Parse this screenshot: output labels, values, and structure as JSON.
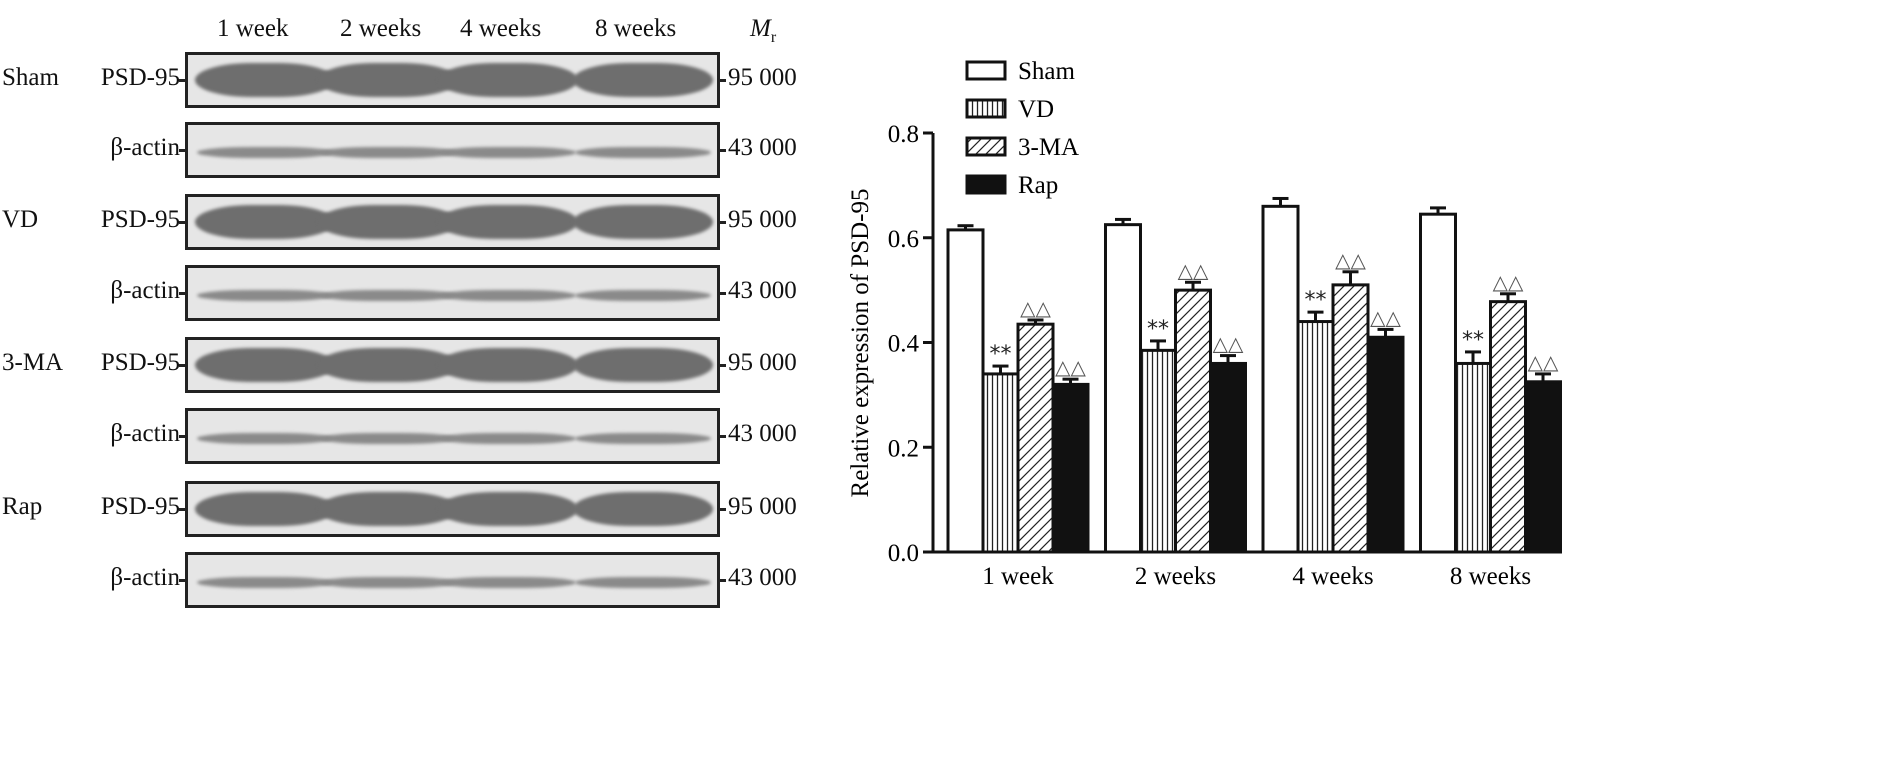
{
  "blot": {
    "lanes": [
      "1 week",
      "2 weeks",
      "4 weeks",
      "8 weeks"
    ],
    "mr_label": "M",
    "mr_sub": "r",
    "rows": [
      {
        "group": "Sham",
        "protein": "PSD-95",
        "mr": "95 000"
      },
      {
        "group": "",
        "protein": "β-actin",
        "mr": "43 000"
      },
      {
        "group": "VD",
        "protein": "PSD-95",
        "mr": "95 000"
      },
      {
        "group": "",
        "protein": "β-actin",
        "mr": "43 000"
      },
      {
        "group": "3-MA",
        "protein": "PSD-95",
        "mr": "95 000"
      },
      {
        "group": "",
        "protein": "β-actin",
        "mr": "43 000"
      },
      {
        "group": "Rap",
        "protein": "PSD-95",
        "mr": "95 000"
      },
      {
        "group": "",
        "protein": "β-actin",
        "mr": "43 000"
      }
    ]
  },
  "chart_data": {
    "type": "bar",
    "title": "",
    "xlabel": "",
    "ylabel": "Relative expression of PSD-95",
    "ylim": [
      0,
      0.8
    ],
    "yticks": [
      "0.0",
      "0.2",
      "0.4",
      "0.6",
      "0.8"
    ],
    "categories": [
      "1 week",
      "2 weeks",
      "4 weeks",
      "8 weeks"
    ],
    "legend_position": "top-left",
    "series": [
      {
        "name": "Sham",
        "values": [
          0.615,
          0.625,
          0.66,
          0.645
        ],
        "errors": [
          0.008,
          0.01,
          0.015,
          0.012
        ],
        "annotations": [
          "",
          "",
          "",
          ""
        ]
      },
      {
        "name": "VD",
        "values": [
          0.34,
          0.385,
          0.44,
          0.36
        ],
        "errors": [
          0.015,
          0.018,
          0.018,
          0.022
        ],
        "annotations": [
          "**",
          "**",
          "**",
          "**"
        ]
      },
      {
        "name": "3-MA",
        "values": [
          0.435,
          0.5,
          0.51,
          0.478
        ],
        "errors": [
          0.008,
          0.015,
          0.025,
          0.015
        ],
        "annotations": [
          "△△",
          "△△",
          "△△",
          "△△"
        ]
      },
      {
        "name": "Rap",
        "values": [
          0.32,
          0.36,
          0.41,
          0.325
        ],
        "errors": [
          0.01,
          0.015,
          0.015,
          0.015
        ],
        "annotations": [
          "△△",
          "△△",
          "△△",
          "△△"
        ]
      }
    ]
  }
}
